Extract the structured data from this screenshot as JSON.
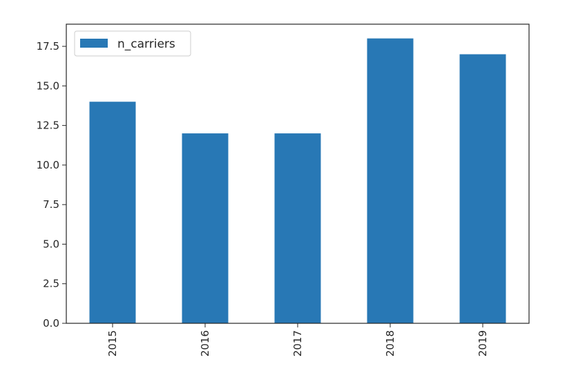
{
  "chart_data": {
    "type": "bar",
    "categories": [
      "2015",
      "2016",
      "2017",
      "2018",
      "2019"
    ],
    "series": [
      {
        "name": "n_carriers",
        "values": [
          14,
          12,
          12,
          18,
          17
        ],
        "color": "#2878b5"
      }
    ],
    "yticks": [
      "0.0",
      "2.5",
      "5.0",
      "7.5",
      "10.0",
      "12.5",
      "15.0",
      "17.5"
    ],
    "ylim": [
      0,
      18.9
    ],
    "title": "",
    "xlabel": "",
    "ylabel": "",
    "legend": {
      "placement": "top-left",
      "entries": [
        "n_carriers"
      ]
    },
    "grid": false
  }
}
